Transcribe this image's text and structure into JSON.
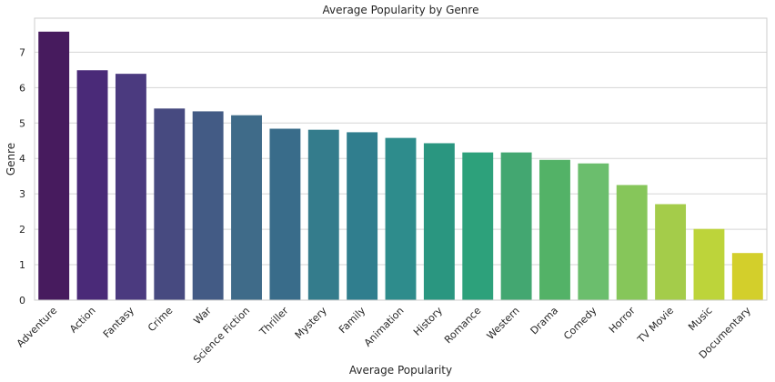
{
  "chart_data": {
    "type": "bar",
    "title": "Average Popularity by Genre",
    "xlabel": "Average Popularity",
    "ylabel": "Genre",
    "categories": [
      "Adventure",
      "Action",
      "Fantasy",
      "Crime",
      "War",
      "Science Fiction",
      "Thriller",
      "Mystery",
      "Family",
      "Animation",
      "History",
      "Romance",
      "Western",
      "Drama",
      "Comedy",
      "Horror",
      "TV Movie",
      "Music",
      "Documentary"
    ],
    "values": [
      7.58,
      6.49,
      6.39,
      5.41,
      5.33,
      5.22,
      4.84,
      4.81,
      4.74,
      4.58,
      4.43,
      4.17,
      4.17,
      3.96,
      3.86,
      3.25,
      2.71,
      2.01,
      1.33
    ],
    "ylim": [
      0,
      7.96
    ],
    "yticks": [
      "0",
      "1",
      "2",
      "3",
      "4",
      "5",
      "6",
      "7"
    ],
    "grid": true,
    "palette": "viridis",
    "colors": [
      "#471b5e",
      "#4a2a78",
      "#4b3a7f",
      "#474a80",
      "#435b85",
      "#3f6b89",
      "#396c8a",
      "#347c8c",
      "#307e8e",
      "#2e8c8c",
      "#2a9680",
      "#2da17b",
      "#43a771",
      "#53b267",
      "#6bbe6d",
      "#86c65a",
      "#a4cc4a",
      "#bdd43a",
      "#d3cf2b"
    ]
  }
}
